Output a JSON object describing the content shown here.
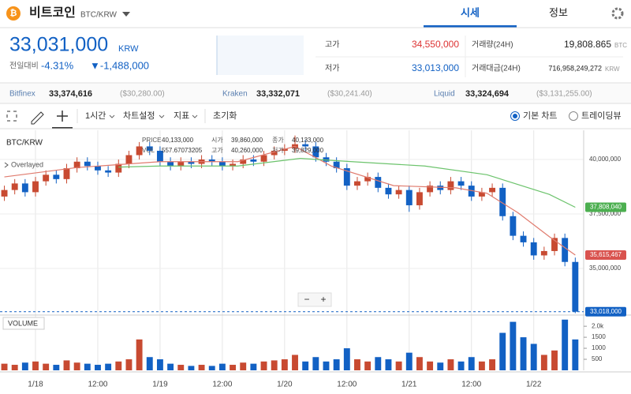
{
  "header": {
    "coin": "비트코인",
    "pair": "BTC/KRW",
    "tabs": [
      "시세",
      "정보"
    ]
  },
  "price": {
    "current": "33,031,000",
    "unit": "KRW",
    "change_label": "전일대비",
    "change_rate": "-4.31%",
    "change_amount": "▼-1,488,000"
  },
  "stats": [
    {
      "label": "고가",
      "value": "34,550,000"
    },
    {
      "label": "저가",
      "value": "33,013,000"
    },
    {
      "label": "거래량(24H)",
      "value": "19,808.865",
      "unit": "BTC"
    },
    {
      "label": "거래대금(24H)",
      "value": "716,958,249,272",
      "unit": "KRW"
    }
  ],
  "exchanges": [
    {
      "name": "Bitfinex",
      "price": "33,374,616",
      "usd": "($30,280.00)"
    },
    {
      "name": "Kraken",
      "price": "33,332,071",
      "usd": "($30,241.40)"
    },
    {
      "name": "Liquid",
      "price": "33,324,694",
      "usd": "($3,131,255.00)"
    }
  ],
  "toolbar": {
    "interval": "1시간",
    "settings": "차트설정",
    "indicators": "지표",
    "reset": "초기화",
    "chart_types": [
      "기본 차트",
      "트레이딩뷰"
    ]
  },
  "chart_data": {
    "type": "candlestick",
    "title": "BTC/KRW",
    "overlay_label": "Overlayed",
    "tooltip": [
      {
        "label": "PRICE",
        "value": "40,133,000"
      },
      {
        "label": "VOL",
        "value": "557.67073205"
      },
      {
        "label": "시가",
        "value": "39,860,000"
      },
      {
        "label": "고가",
        "value": "40,260,000"
      },
      {
        "label": "종가",
        "value": "40,133,000"
      },
      {
        "label": "저가",
        "value": "39,829,000"
      }
    ],
    "x": [
      -6,
      -4,
      -2,
      0,
      2,
      4,
      6,
      8,
      10,
      12,
      14,
      16,
      18,
      20,
      22,
      24,
      26,
      28,
      30,
      32,
      34,
      36,
      38,
      40,
      42,
      44,
      46,
      48,
      50,
      52,
      54,
      56,
      58,
      60,
      62,
      64,
      66,
      68,
      70,
      72,
      74,
      76,
      78,
      80,
      82,
      84,
      86,
      88,
      90,
      92,
      94,
      96,
      98,
      100,
      102,
      104
    ],
    "open": [
      38300000,
      38600000,
      38900000,
      38500000,
      39000000,
      39300000,
      39100000,
      39600000,
      39900000,
      39700000,
      39500000,
      39400000,
      39800000,
      40200000,
      40600000,
      40400000,
      39900000,
      39700000,
      39900000,
      39800000,
      40000000,
      39900000,
      39700000,
      39800000,
      40000000,
      39900000,
      40200000,
      40400000,
      40500000,
      40700000,
      40600000,
      40100000,
      39900000,
      39600000,
      38800000,
      39000000,
      39200000,
      38700000,
      38400000,
      38600000,
      37900000,
      38500000,
      38800000,
      38600000,
      39000000,
      38800000,
      38300000,
      38500000,
      38700000,
      37400000,
      36500000,
      36200000,
      35600000,
      35800000,
      36400000,
      35300000
    ],
    "high": [
      38800000,
      39100000,
      39100000,
      39200000,
      39500000,
      39500000,
      39800000,
      40100000,
      40100000,
      39900000,
      39700000,
      40000000,
      40400000,
      40800000,
      40800000,
      40600000,
      40100000,
      40100000,
      40100000,
      40200000,
      40200000,
      40100000,
      40000000,
      40200000,
      40200000,
      40400000,
      40600000,
      40700000,
      41100000,
      40900000,
      40800000,
      40300000,
      40100000,
      39800000,
      39200000,
      39400000,
      39400000,
      38900000,
      38800000,
      38800000,
      38700000,
      39000000,
      39000000,
      39200000,
      39200000,
      39000000,
      38700000,
      38900000,
      38900000,
      37600000,
      36700000,
      36400000,
      36000000,
      36600000,
      36600000,
      35500000
    ],
    "low": [
      38100000,
      38400000,
      38300000,
      38300000,
      38800000,
      38900000,
      38900000,
      39400000,
      39500000,
      39300000,
      39200000,
      39200000,
      39600000,
      40000000,
      40200000,
      39700000,
      39500000,
      39500000,
      39600000,
      39600000,
      39700000,
      39500000,
      39500000,
      39600000,
      39700000,
      39700000,
      40000000,
      40200000,
      40300000,
      40400000,
      39900000,
      39700000,
      39400000,
      38600000,
      38600000,
      38800000,
      38500000,
      38200000,
      38200000,
      37600000,
      37700000,
      38300000,
      38400000,
      38400000,
      38600000,
      38100000,
      38100000,
      38300000,
      37200000,
      36300000,
      36000000,
      35400000,
      35400000,
      35600000,
      35100000,
      32950000
    ],
    "close": [
      38600000,
      38900000,
      38500000,
      39000000,
      39300000,
      39100000,
      39600000,
      39900000,
      39700000,
      39500000,
      39400000,
      39800000,
      40200000,
      40600000,
      40400000,
      39900000,
      39700000,
      39900000,
      39800000,
      40000000,
      39900000,
      39700000,
      39800000,
      40000000,
      39900000,
      40200000,
      40400000,
      40500000,
      40700000,
      40600000,
      40100000,
      39900000,
      39600000,
      38800000,
      39000000,
      39200000,
      38700000,
      38400000,
      38600000,
      37900000,
      38500000,
      38800000,
      38600000,
      39000000,
      38800000,
      38300000,
      38500000,
      38700000,
      37400000,
      36500000,
      36200000,
      35600000,
      35800000,
      36400000,
      35300000,
      33018000
    ],
    "volume": [
      300,
      250,
      350,
      400,
      300,
      250,
      450,
      350,
      300,
      250,
      300,
      400,
      500,
      1400,
      600,
      500,
      300,
      250,
      200,
      250,
      200,
      300,
      250,
      350,
      300,
      400,
      450,
      500,
      700,
      400,
      600,
      400,
      500,
      1000,
      500,
      400,
      600,
      500,
      400,
      800,
      600,
      400,
      350,
      500,
      400,
      600,
      400,
      500,
      1700,
      2200,
      1500,
      1200,
      700,
      900,
      2300,
      1400
    ],
    "up_color": "#c84a31",
    "down_color": "#1261c4",
    "moving_averages": [
      {
        "color": "#e07b6e",
        "x": [
          -6,
          8,
          24,
          39,
          50,
          57,
          69,
          81,
          87,
          93,
          99,
          104
        ],
        "values": [
          39200000,
          39630000,
          39900000,
          39900000,
          40600000,
          39700000,
          38800000,
          38700000,
          38450000,
          37550000,
          36460000,
          35615467
        ]
      },
      {
        "color": "#6cc36c",
        "x": [
          16,
          24,
          39,
          51,
          61,
          75,
          87,
          99,
          104
        ],
        "values": [
          39650000,
          39700000,
          39700000,
          40050000,
          39900000,
          39700000,
          39300000,
          38400000,
          37808040
        ]
      }
    ],
    "price_tags": [
      {
        "value": 37808040,
        "label": "37,808,040",
        "color": "#4caf50"
      },
      {
        "value": 35615467,
        "label": "35,615,467",
        "color": "#d9534f"
      },
      {
        "value": 33018000,
        "label": "33,018,000",
        "color": "#1261c4"
      }
    ],
    "xlim": [
      -6.84,
      108.66
    ],
    "xticks": [
      {
        "value": 0,
        "label": "1/18"
      },
      {
        "value": 12,
        "label": "12:00"
      },
      {
        "value": 24,
        "label": "1/19"
      },
      {
        "value": 36,
        "label": "12:00"
      },
      {
        "value": 48,
        "label": "1/20"
      },
      {
        "value": 60,
        "label": "12:00"
      },
      {
        "value": 72,
        "label": "1/21"
      },
      {
        "value": 84,
        "label": "12:00"
      },
      {
        "value": 96,
        "label": "1/22"
      }
    ],
    "ylim": [
      32900000,
      41340000
    ],
    "yticks": [
      {
        "value": 35000000,
        "label": "35,000,000"
      },
      {
        "value": 37500000,
        "label": "37,500,000"
      },
      {
        "value": 40000000,
        "label": "40,000,000"
      }
    ],
    "volume_label": "VOLUME",
    "volume_ylim": [
      0,
      2400
    ],
    "volume_yticks": [
      500,
      1000,
      1500,
      {
        "value": 2000,
        "label": "2.0k"
      }
    ],
    "zoom_controls": [
      "−",
      "+"
    ]
  }
}
